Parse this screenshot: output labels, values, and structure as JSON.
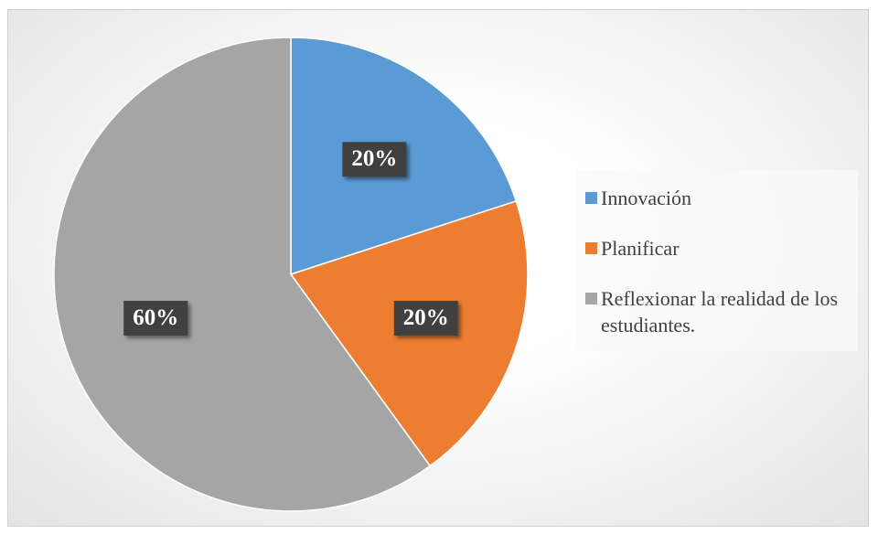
{
  "chart_data": {
    "type": "pie",
    "categories": [
      "Innovación",
      "Planificar",
      "Reflexionar la realidad de los estudiantes."
    ],
    "values": [
      20,
      20,
      60
    ],
    "value_labels": [
      "20%",
      "20%",
      "60%"
    ],
    "colors": [
      "#5b9bd5",
      "#ed7d31",
      "#a5a5a5"
    ],
    "legend": "right"
  }
}
